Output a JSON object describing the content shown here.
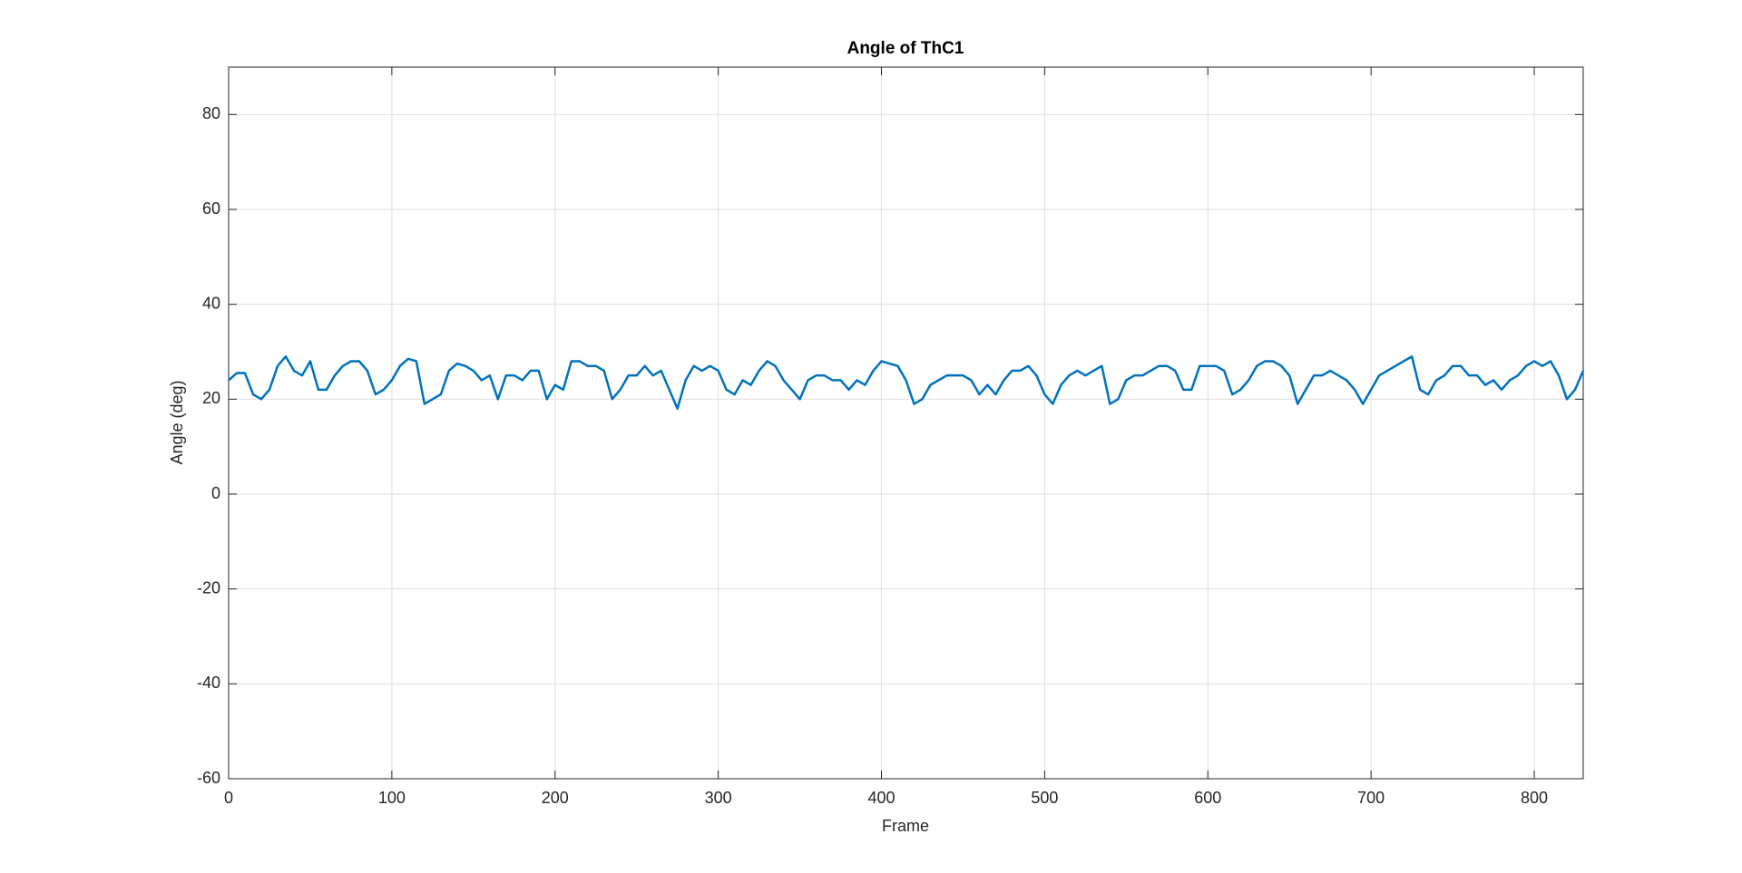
{
  "chart_data": {
    "type": "line",
    "title": "Angle of ThC1",
    "x_label": "Frame",
    "y_label": "Angle (deg)",
    "x": [
      0,
      5,
      10,
      15,
      20,
      25,
      30,
      35,
      40,
      45,
      50,
      55,
      60,
      65,
      70,
      75,
      80,
      85,
      90,
      95,
      100,
      105,
      110,
      115,
      120,
      125,
      130,
      135,
      140,
      145,
      150,
      155,
      160,
      165,
      170,
      175,
      180,
      185,
      190,
      195,
      200,
      205,
      210,
      215,
      220,
      225,
      230,
      235,
      240,
      245,
      250,
      255,
      260,
      265,
      270,
      275,
      280,
      285,
      290,
      295,
      300,
      305,
      310,
      315,
      320,
      325,
      330,
      335,
      340,
      345,
      350,
      355,
      360,
      365,
      370,
      375,
      380,
      385,
      390,
      395,
      400,
      405,
      410,
      415,
      420,
      425,
      430,
      435,
      440,
      445,
      450,
      455,
      460,
      465,
      470,
      475,
      480,
      485,
      490,
      495,
      500,
      505,
      510,
      515,
      520,
      525,
      530,
      535,
      540,
      545,
      550,
      555,
      560,
      565,
      570,
      575,
      580,
      585,
      590,
      595,
      600,
      605,
      610,
      615,
      620,
      625,
      630,
      635,
      640,
      645,
      650,
      655,
      660,
      665,
      670,
      675,
      680,
      685,
      690,
      695,
      700,
      705,
      710,
      715,
      720,
      725,
      730,
      735,
      740,
      745,
      750,
      755,
      760,
      765,
      770,
      775,
      780,
      785,
      790,
      795,
      800,
      805,
      810,
      815,
      820,
      825,
      830
    ],
    "series": [
      {
        "name": "ThC1",
        "color": "#0072bd",
        "values": [
          24,
          25.5,
          25.5,
          21,
          20,
          22,
          27,
          29,
          26,
          25,
          28,
          22,
          22,
          25,
          27,
          28,
          28,
          26,
          21,
          22,
          24,
          27,
          28.5,
          28,
          19,
          20,
          21,
          26,
          27.5,
          27,
          26,
          24,
          25,
          20,
          25,
          25,
          24,
          26,
          26,
          20,
          23,
          22,
          28,
          28,
          27,
          27,
          26,
          20,
          22,
          25,
          25,
          27,
          25,
          26,
          22,
          18,
          24,
          27,
          26,
          27,
          26,
          22,
          21,
          24,
          23,
          26,
          28,
          27,
          24,
          22,
          20,
          24,
          25,
          25,
          24,
          24,
          22,
          24,
          23,
          26,
          28,
          27.5,
          27,
          24,
          19,
          20,
          23,
          24,
          25,
          25,
          25,
          24,
          21,
          23,
          21,
          24,
          26,
          26,
          27,
          25,
          21,
          19,
          23,
          25,
          26,
          25,
          26,
          27,
          19,
          20,
          24,
          25,
          25,
          26,
          27,
          27,
          26,
          22,
          22,
          27,
          27,
          27,
          26,
          21,
          22,
          24,
          27,
          28,
          28,
          27,
          25,
          19,
          22,
          25,
          25,
          26,
          25,
          24,
          22,
          19,
          22,
          25,
          26,
          27,
          28,
          29,
          22,
          21,
          24,
          25,
          27,
          27,
          25,
          25,
          23,
          24,
          22,
          24,
          25,
          27,
          28,
          27,
          28,
          25,
          20,
          22,
          26
        ]
      }
    ],
    "xlim": [
      0,
      830
    ],
    "ylim": [
      -60,
      90
    ],
    "xticks": [
      0,
      100,
      200,
      300,
      400,
      500,
      600,
      700,
      800
    ],
    "yticks": [
      -60,
      -40,
      -20,
      0,
      20,
      40,
      60,
      80
    ],
    "grid": true
  }
}
